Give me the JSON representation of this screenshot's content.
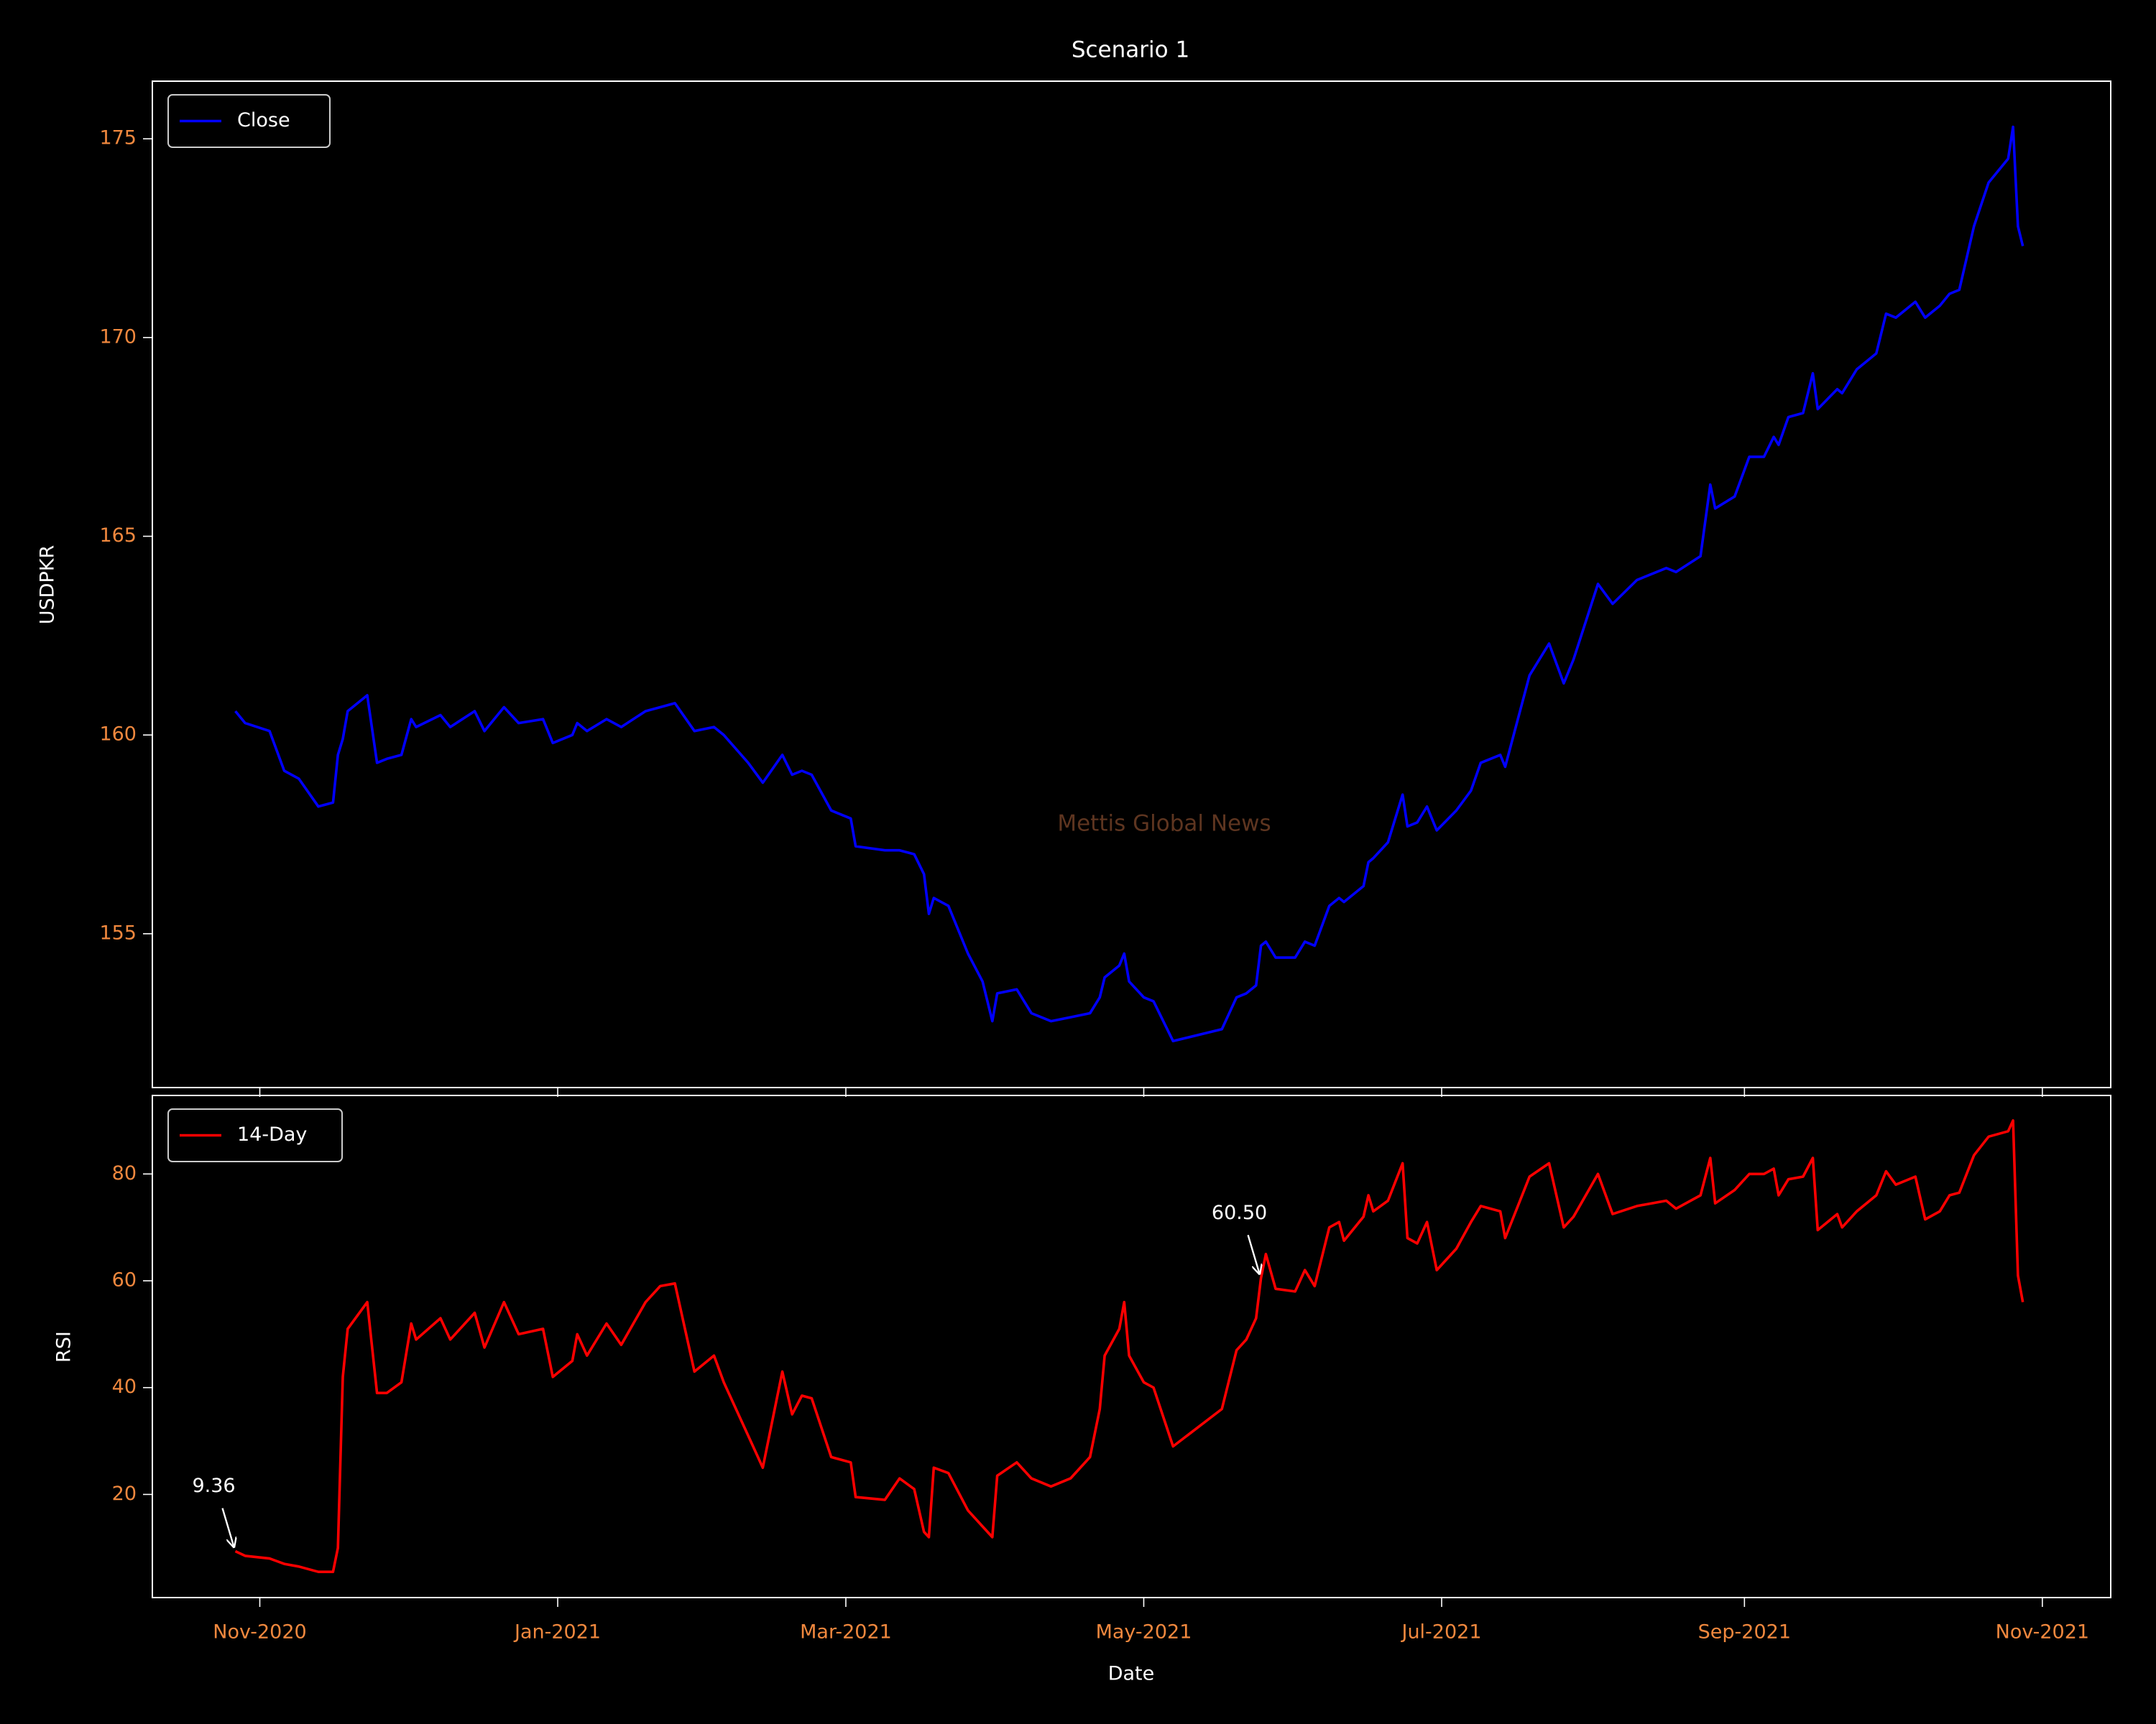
{
  "chart_data": [
    {
      "type": "line",
      "title": "Scenario 1",
      "ylabel": "USDPKR",
      "watermark": "Mettis Global News",
      "legend": "upper left",
      "tick_color": "#f0883e",
      "xlim": [
        "2020-10-10",
        "2021-11-15"
      ],
      "ylim": [
        151.13,
        176.45
      ],
      "yticks": [
        155,
        160,
        165,
        170,
        175
      ],
      "x": [
        "2020-10-27",
        "2020-10-29",
        "2020-11-03",
        "2020-11-06",
        "2020-11-09",
        "2020-11-13",
        "2020-11-16",
        "2020-11-17",
        "2020-11-18",
        "2020-11-19",
        "2020-11-23",
        "2020-11-25",
        "2020-11-27",
        "2020-11-30",
        "2020-12-02",
        "2020-12-03",
        "2020-12-08",
        "2020-12-10",
        "2020-12-15",
        "2020-12-17",
        "2020-12-21",
        "2020-12-24",
        "2020-12-29",
        "2020-12-31",
        "2021-01-04",
        "2021-01-05",
        "2021-01-07",
        "2021-01-11",
        "2021-01-14",
        "2021-01-19",
        "2021-01-22",
        "2021-01-25",
        "2021-01-29",
        "2021-02-02",
        "2021-02-04",
        "2021-02-09",
        "2021-02-12",
        "2021-02-16",
        "2021-02-18",
        "2021-02-20",
        "2021-02-22",
        "2021-02-26",
        "2021-03-02",
        "2021-03-03",
        "2021-03-09",
        "2021-03-12",
        "2021-03-15",
        "2021-03-17",
        "2021-03-18",
        "2021-03-19",
        "2021-03-22",
        "2021-03-26",
        "2021-03-29",
        "2021-03-31",
        "2021-04-01",
        "2021-04-05",
        "2021-04-08",
        "2021-04-12",
        "2021-04-16",
        "2021-04-20",
        "2021-04-22",
        "2021-04-23",
        "2021-04-26",
        "2021-04-27",
        "2021-04-28",
        "2021-05-01",
        "2021-05-03",
        "2021-05-07",
        "2021-05-17",
        "2021-05-20",
        "2021-05-22",
        "2021-05-24",
        "2021-05-25",
        "2021-05-26",
        "2021-05-28",
        "2021-06-01",
        "2021-06-03",
        "2021-06-05",
        "2021-06-08",
        "2021-06-10",
        "2021-06-11",
        "2021-06-15",
        "2021-06-16",
        "2021-06-17",
        "2021-06-20",
        "2021-06-23",
        "2021-06-24",
        "2021-06-26",
        "2021-06-28",
        "2021-06-30",
        "2021-07-04",
        "2021-07-07",
        "2021-07-09",
        "2021-07-13",
        "2021-07-14",
        "2021-07-19",
        "2021-07-23",
        "2021-07-26",
        "2021-07-28",
        "2021-08-02",
        "2021-08-05",
        "2021-08-10",
        "2021-08-16",
        "2021-08-18",
        "2021-08-23",
        "2021-08-25",
        "2021-08-26",
        "2021-08-30",
        "2021-09-02",
        "2021-09-05",
        "2021-09-07",
        "2021-09-08",
        "2021-09-10",
        "2021-09-13",
        "2021-09-15",
        "2021-09-16",
        "2021-09-20",
        "2021-09-21",
        "2021-09-24",
        "2021-09-28",
        "2021-09-30",
        "2021-10-02",
        "2021-10-06",
        "2021-10-08",
        "2021-10-11",
        "2021-10-13",
        "2021-10-15",
        "2021-10-18",
        "2021-10-21",
        "2021-10-25",
        "2021-10-26",
        "2021-10-27",
        "2021-10-28"
      ],
      "series": [
        {
          "name": "Close",
          "color": "#0000ff",
          "values": [
            160.6,
            160.3,
            160.1,
            159.1,
            158.9,
            158.2,
            158.3,
            159.5,
            159.9,
            160.6,
            161.0,
            159.3,
            159.4,
            159.5,
            160.4,
            160.2,
            160.5,
            160.2,
            160.6,
            160.1,
            160.7,
            160.3,
            160.4,
            159.8,
            160.0,
            160.3,
            160.1,
            160.4,
            160.2,
            160.6,
            160.7,
            160.8,
            160.1,
            160.2,
            160.0,
            159.3,
            158.8,
            159.5,
            159.0,
            159.1,
            159.0,
            158.1,
            157.9,
            157.2,
            157.1,
            157.1,
            157.0,
            156.5,
            155.5,
            155.9,
            155.7,
            154.5,
            153.8,
            152.8,
            153.5,
            153.6,
            153.0,
            152.8,
            152.9,
            153.0,
            153.4,
            153.9,
            154.2,
            154.5,
            153.8,
            153.4,
            153.3,
            152.3,
            152.6,
            153.4,
            153.5,
            153.7,
            154.7,
            154.8,
            154.4,
            154.4,
            154.8,
            154.7,
            155.7,
            155.9,
            155.8,
            156.2,
            156.8,
            156.9,
            157.3,
            158.5,
            157.7,
            157.8,
            158.2,
            157.6,
            158.1,
            158.6,
            159.3,
            159.5,
            159.2,
            161.5,
            162.3,
            161.3,
            161.9,
            163.8,
            163.3,
            163.9,
            164.2,
            164.1,
            164.5,
            166.3,
            165.7,
            166.0,
            167.0,
            167.0,
            167.5,
            167.3,
            168.0,
            168.1,
            169.1,
            168.2,
            168.7,
            168.6,
            169.2,
            169.6,
            170.6,
            170.5,
            170.9,
            170.5,
            170.8,
            171.1,
            171.2,
            172.8,
            173.9,
            174.5,
            175.3,
            172.8,
            172.3
          ]
        }
      ]
    },
    {
      "type": "line",
      "ylabel": "RSI",
      "xlabel": "Date",
      "legend": "upper left",
      "tick_color": "#f0883e",
      "xlim": [
        "2020-10-10",
        "2021-11-15"
      ],
      "ylim": [
        0.69,
        94.7
      ],
      "yticks": [
        20,
        40,
        60,
        80
      ],
      "xticks": [
        {
          "value": "2020-11-01",
          "label": "Nov-2020"
        },
        {
          "value": "2021-01-01",
          "label": "Jan-2021"
        },
        {
          "value": "2021-03-01",
          "label": "Mar-2021"
        },
        {
          "value": "2021-05-01",
          "label": "May-2021"
        },
        {
          "value": "2021-07-01",
          "label": "Jul-2021"
        },
        {
          "value": "2021-09-01",
          "label": "Sep-2021"
        },
        {
          "value": "2021-11-01",
          "label": "Nov-2021"
        }
      ],
      "annotations": [
        {
          "text": "9.36",
          "x": "2020-10-27",
          "y": 9.36
        },
        {
          "text": "60.50",
          "x": "2021-05-25",
          "y": 60.5
        }
      ],
      "x": [
        "2020-10-27",
        "2020-10-29",
        "2020-11-03",
        "2020-11-06",
        "2020-11-09",
        "2020-11-13",
        "2020-11-16",
        "2020-11-17",
        "2020-11-18",
        "2020-11-19",
        "2020-11-23",
        "2020-11-25",
        "2020-11-27",
        "2020-11-30",
        "2020-12-02",
        "2020-12-03",
        "2020-12-08",
        "2020-12-10",
        "2020-12-15",
        "2020-12-17",
        "2020-12-21",
        "2020-12-24",
        "2020-12-29",
        "2020-12-31",
        "2021-01-04",
        "2021-01-05",
        "2021-01-07",
        "2021-01-11",
        "2021-01-14",
        "2021-01-19",
        "2021-01-22",
        "2021-01-25",
        "2021-01-29",
        "2021-02-02",
        "2021-02-04",
        "2021-02-09",
        "2021-02-12",
        "2021-02-16",
        "2021-02-18",
        "2021-02-20",
        "2021-02-22",
        "2021-02-26",
        "2021-03-02",
        "2021-03-03",
        "2021-03-09",
        "2021-03-12",
        "2021-03-15",
        "2021-03-17",
        "2021-03-18",
        "2021-03-19",
        "2021-03-22",
        "2021-03-26",
        "2021-03-29",
        "2021-03-31",
        "2021-04-01",
        "2021-04-05",
        "2021-04-08",
        "2021-04-12",
        "2021-04-16",
        "2021-04-20",
        "2021-04-22",
        "2021-04-23",
        "2021-04-26",
        "2021-04-27",
        "2021-04-28",
        "2021-05-01",
        "2021-05-03",
        "2021-05-07",
        "2021-05-17",
        "2021-05-20",
        "2021-05-22",
        "2021-05-24",
        "2021-05-25",
        "2021-05-26",
        "2021-05-28",
        "2021-06-01",
        "2021-06-03",
        "2021-06-05",
        "2021-06-08",
        "2021-06-10",
        "2021-06-11",
        "2021-06-15",
        "2021-06-16",
        "2021-06-17",
        "2021-06-20",
        "2021-06-23",
        "2021-06-24",
        "2021-06-26",
        "2021-06-28",
        "2021-06-30",
        "2021-07-04",
        "2021-07-07",
        "2021-07-09",
        "2021-07-13",
        "2021-07-14",
        "2021-07-19",
        "2021-07-23",
        "2021-07-26",
        "2021-07-28",
        "2021-08-02",
        "2021-08-05",
        "2021-08-10",
        "2021-08-16",
        "2021-08-18",
        "2021-08-23",
        "2021-08-25",
        "2021-08-26",
        "2021-08-30",
        "2021-09-02",
        "2021-09-05",
        "2021-09-07",
        "2021-09-08",
        "2021-09-10",
        "2021-09-13",
        "2021-09-15",
        "2021-09-16",
        "2021-09-20",
        "2021-09-21",
        "2021-09-24",
        "2021-09-28",
        "2021-09-30",
        "2021-10-02",
        "2021-10-06",
        "2021-10-08",
        "2021-10-11",
        "2021-10-13",
        "2021-10-15",
        "2021-10-18",
        "2021-10-21",
        "2021-10-25",
        "2021-10-26",
        "2021-10-27",
        "2021-10-28"
      ],
      "series": [
        {
          "name": "14-Day",
          "color": "#ff0000",
          "values": [
            9.36,
            8.5,
            8,
            7,
            6.5,
            5.5,
            5.5,
            10,
            42,
            51,
            56,
            39,
            39,
            41,
            52,
            49,
            53,
            49,
            54,
            47.5,
            56,
            50,
            51,
            42,
            45,
            50,
            46,
            52,
            48,
            56,
            59,
            59.5,
            43,
            46,
            41,
            31,
            25,
            43,
            35,
            38.5,
            38,
            27,
            26,
            19.5,
            19,
            23,
            21,
            13,
            12,
            25,
            24,
            17,
            14,
            12,
            23.5,
            26,
            23,
            21.5,
            23,
            27,
            36,
            46,
            51,
            56,
            46,
            41,
            40,
            29,
            36,
            47,
            49,
            53,
            60.5,
            65,
            58.5,
            58,
            62,
            59,
            70,
            71,
            67.5,
            72,
            76,
            73,
            75,
            82,
            68,
            67,
            71,
            62,
            66,
            71,
            74,
            73,
            68,
            79.5,
            82,
            70,
            72,
            80,
            72.5,
            74,
            75,
            73.5,
            76,
            83,
            74.5,
            77,
            80,
            80,
            81,
            76,
            79,
            79.5,
            83,
            69.5,
            72.5,
            70,
            73,
            76,
            80.5,
            78,
            79.5,
            71.5,
            73,
            76,
            76.5,
            83.5,
            87,
            88,
            90,
            61,
            56
          ]
        }
      ]
    }
  ]
}
